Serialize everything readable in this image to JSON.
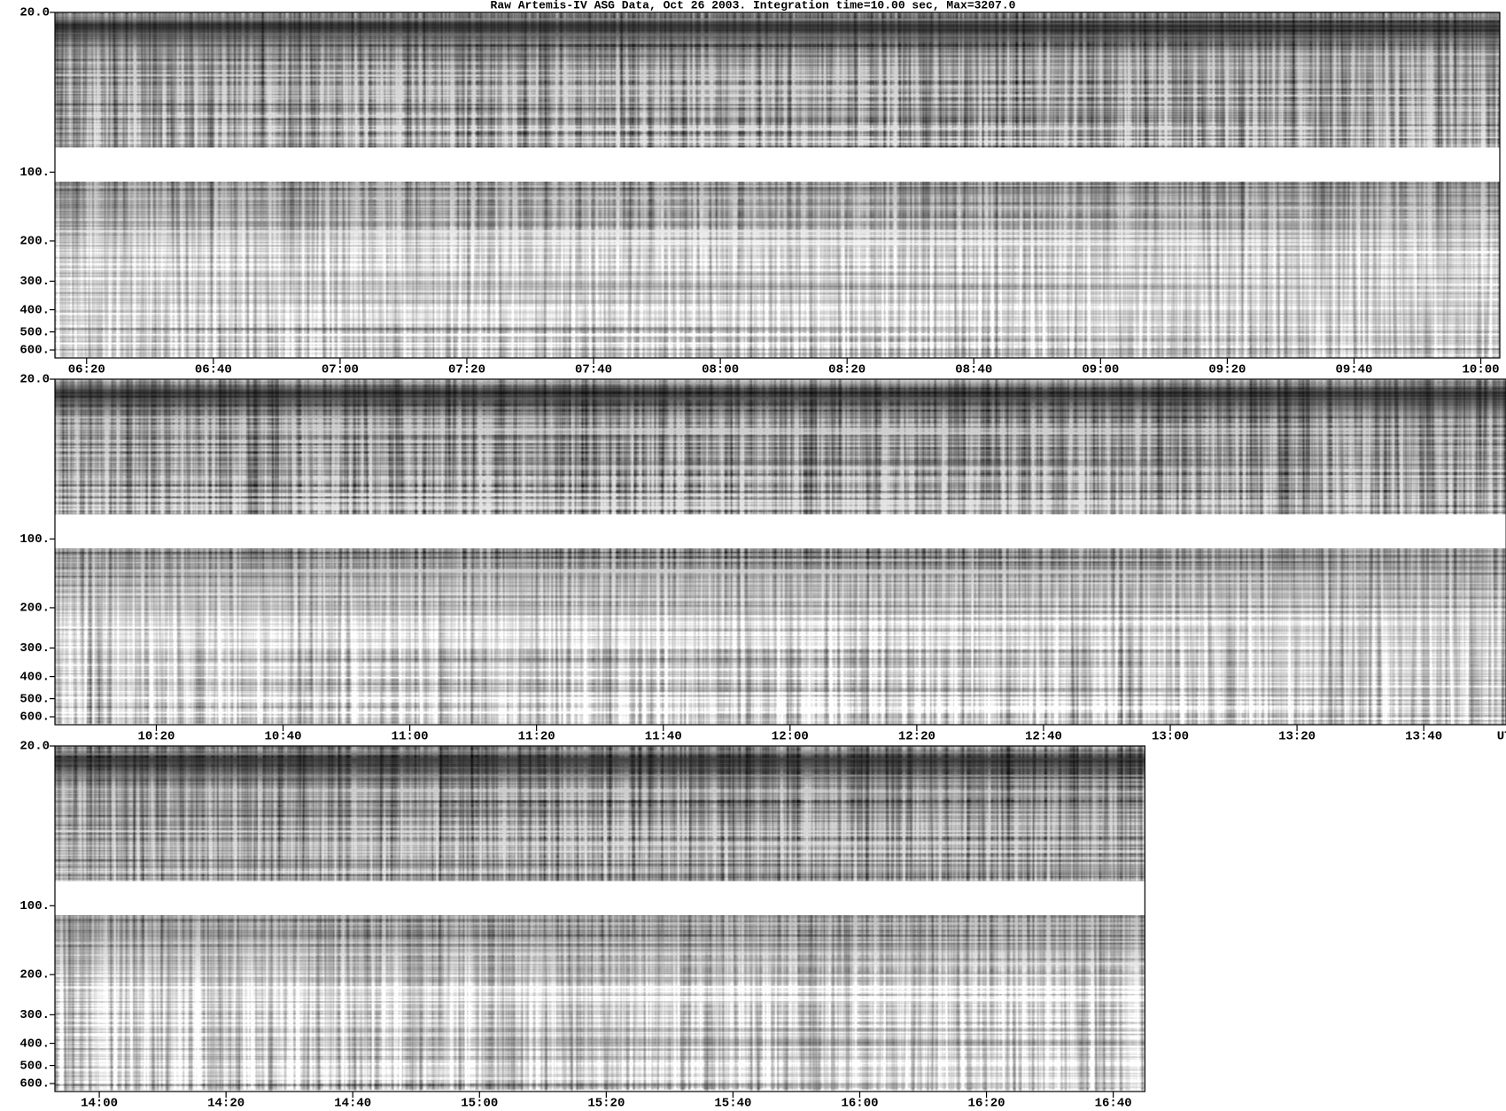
{
  "chart_data": [
    {
      "type": "spectrogram",
      "title": "Raw  Artemis-IV  ASG Data, Oct 26 2003. Integration time=10.00 sec, Max=3207.0",
      "xlim": [
        375,
        603
      ],
      "xticks": [
        {
          "value": 380,
          "label": "06:20"
        },
        {
          "value": 400,
          "label": "06:40"
        },
        {
          "value": 420,
          "label": "07:00"
        },
        {
          "value": 440,
          "label": "07:20"
        },
        {
          "value": 460,
          "label": "07:40"
        },
        {
          "value": 480,
          "label": "08:00"
        },
        {
          "value": 500,
          "label": "08:20"
        },
        {
          "value": 520,
          "label": "08:40"
        },
        {
          "value": 540,
          "label": "09:00"
        },
        {
          "value": 560,
          "label": "09:20"
        },
        {
          "value": 580,
          "label": "09:40"
        },
        {
          "value": 600,
          "label": "10:00"
        }
      ],
      "ylim": [
        20,
        650
      ],
      "log_y": true,
      "yticks": [
        {
          "value": 20,
          "label": "20.0"
        },
        {
          "value": 100,
          "label": "100."
        },
        {
          "value": 200,
          "label": "200."
        },
        {
          "value": 300,
          "label": "300."
        },
        {
          "value": 400,
          "label": "400."
        },
        {
          "value": 500,
          "label": "500."
        },
        {
          "value": 600,
          "label": "600."
        }
      ],
      "bands": [
        [
          20,
          78
        ],
        [
          110,
          650
        ]
      ]
    },
    {
      "type": "spectrogram",
      "xlim": [
        604,
        833
      ],
      "xticks": [
        {
          "value": 620,
          "label": "10:20"
        },
        {
          "value": 640,
          "label": "10:40"
        },
        {
          "value": 660,
          "label": "11:00"
        },
        {
          "value": 680,
          "label": "11:20"
        },
        {
          "value": 700,
          "label": "11:40"
        },
        {
          "value": 720,
          "label": "12:00"
        },
        {
          "value": 740,
          "label": "12:20"
        },
        {
          "value": 760,
          "label": "12:40"
        },
        {
          "value": 780,
          "label": "13:00"
        },
        {
          "value": 800,
          "label": "13:20"
        },
        {
          "value": 820,
          "label": "13:40"
        }
      ],
      "x_unit_label": "UT",
      "ylim": [
        20,
        650
      ],
      "log_y": true,
      "yticks": [
        {
          "value": 20,
          "label": "20.0"
        },
        {
          "value": 100,
          "label": "100."
        },
        {
          "value": 200,
          "label": "200."
        },
        {
          "value": 300,
          "label": "300."
        },
        {
          "value": 400,
          "label": "400."
        },
        {
          "value": 500,
          "label": "500."
        },
        {
          "value": 600,
          "label": "600."
        }
      ],
      "bands": [
        [
          20,
          78
        ],
        [
          110,
          650
        ]
      ]
    },
    {
      "type": "spectrogram",
      "xlim": [
        833,
        1005
      ],
      "xticks": [
        {
          "value": 840,
          "label": "14:00"
        },
        {
          "value": 860,
          "label": "14:20"
        },
        {
          "value": 880,
          "label": "14:40"
        },
        {
          "value": 900,
          "label": "15:00"
        },
        {
          "value": 920,
          "label": "15:20"
        },
        {
          "value": 940,
          "label": "15:40"
        },
        {
          "value": 960,
          "label": "16:00"
        },
        {
          "value": 980,
          "label": "16:20"
        },
        {
          "value": 1000,
          "label": "16:40"
        }
      ],
      "ylim": [
        20,
        650
      ],
      "log_y": true,
      "yticks": [
        {
          "value": 20,
          "label": "20.0"
        },
        {
          "value": 100,
          "label": "100."
        },
        {
          "value": 200,
          "label": "200."
        },
        {
          "value": 300,
          "label": "300."
        },
        {
          "value": 400,
          "label": "400."
        },
        {
          "value": 500,
          "label": "500."
        },
        {
          "value": 600,
          "label": "600."
        }
      ],
      "bands": [
        [
          20,
          78
        ],
        [
          110,
          650
        ]
      ]
    }
  ]
}
